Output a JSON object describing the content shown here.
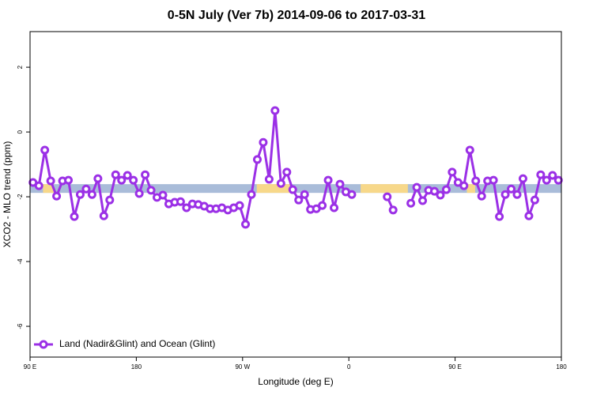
{
  "chart_data": {
    "type": "line",
    "title": "0-5N July (Ver 7b)   2014-09-06 to 2017-03-31",
    "x_label": "Longitude (deg E)",
    "y_label": "XCO2 - MLO trend (ppm)",
    "xlim": [
      90,
      540
    ],
    "xticks": [
      {
        "value": 90,
        "label": "90 E"
      },
      180,
      {
        "value": 270,
        "label": "90 W"
      },
      {
        "value": 360,
        "label": "0"
      },
      {
        "value": 450,
        "label": "90 E"
      },
      {
        "value": 540,
        "label": "180"
      }
    ],
    "ylim": [
      -6.95,
      3.1
    ],
    "yticks": [
      2,
      0,
      -2,
      -4,
      -6
    ],
    "legend": "lower left",
    "band": {
      "ylim": [
        -1.61,
        -1.88
      ],
      "color": "#a9bcd9",
      "segments": [
        {
          "x": [
            101,
            110
          ],
          "color": "#f7d88a"
        },
        {
          "x": [
            282,
            310
          ],
          "color": "#f7d88a"
        },
        {
          "x": [
            370,
            410
          ],
          "color": "#f7d88a"
        },
        {
          "x": [
            460,
            467
          ],
          "color": "#f7d88a"
        }
      ]
    },
    "x": [
      92.5,
      97.5,
      102.5,
      107.5,
      112.5,
      117.5,
      122.5,
      127.5,
      132.5,
      137.5,
      142.5,
      147.5,
      152.5,
      157.5,
      162.5,
      167.5,
      172.5,
      177.5,
      182.5,
      187.5,
      192.5,
      197.5,
      202.5,
      207.5,
      212.5,
      217.5,
      222.5,
      227.5,
      232.5,
      237.5,
      242.5,
      247.5,
      252.5,
      257.5,
      262.5,
      267.5,
      272.5,
      277.5,
      282.5,
      287.5,
      292.5,
      297.5,
      302.5,
      307.5,
      312.5,
      317.5,
      322.5,
      327.5,
      332.5,
      337.5,
      342.5,
      347.5,
      352.5,
      357.5,
      362.5,
      367.5,
      372.5,
      377.5,
      382.5,
      387.5,
      392.5,
      397.5,
      402.5,
      407.5,
      412.5,
      417.5,
      422.5,
      427.5,
      432.5,
      437.5,
      442.5,
      447.5,
      452.5,
      457.5,
      462.5,
      467.5,
      472.5,
      477.5,
      482.5,
      487.5,
      492.5,
      497.5,
      502.5,
      507.5,
      512.5,
      517.5,
      522.5,
      527.5,
      532.5,
      537.5
    ],
    "series": [
      {
        "name": "Land (Nadir&Glint) and Ocean (Glint)",
        "color": "#9b30e6",
        "values": [
          -1.56,
          -1.66,
          -0.56,
          -1.51,
          -1.98,
          -1.51,
          -1.49,
          -2.61,
          -1.93,
          -1.76,
          -1.93,
          -1.44,
          -2.59,
          -2.1,
          -1.32,
          -1.49,
          -1.34,
          -1.49,
          -1.9,
          -1.32,
          -1.8,
          -2.02,
          -1.95,
          -2.22,
          -2.17,
          -2.15,
          -2.34,
          -2.22,
          -2.24,
          -2.29,
          -2.37,
          -2.37,
          -2.34,
          -2.41,
          -2.34,
          -2.27,
          -2.85,
          -1.93,
          -0.85,
          -0.32,
          -1.46,
          0.66,
          -1.59,
          -1.24,
          -1.78,
          -2.1,
          -1.93,
          -2.39,
          -2.37,
          -2.27,
          -1.49,
          -2.34,
          -1.61,
          -1.85,
          -1.93,
          null,
          null,
          null,
          null,
          null,
          -2.0,
          -2.41,
          null,
          null,
          -2.2,
          -1.71,
          -2.12,
          -1.8,
          -1.83,
          -1.95,
          -1.78,
          -1.24,
          -1.56,
          -1.66,
          -0.56,
          -1.51,
          -1.98,
          -1.51,
          -1.49,
          -2.61,
          -1.93,
          -1.76,
          -1.93,
          -1.44,
          -2.59,
          -2.1,
          -1.32,
          -1.49,
          -1.34,
          -1.49
        ]
      }
    ]
  }
}
